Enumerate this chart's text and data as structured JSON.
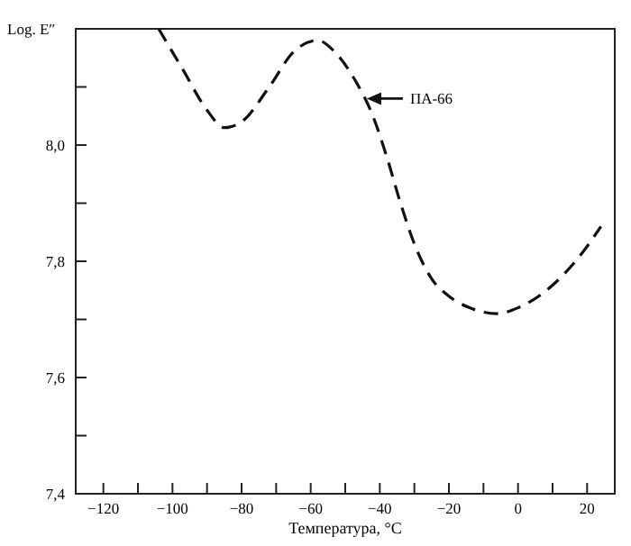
{
  "chart_data": {
    "type": "line",
    "xlabel": "Температура, °C",
    "ylabel": "Log. E″",
    "x": [
      -104,
      -97,
      -90,
      -85,
      -80,
      -72,
      -65,
      -58,
      -53,
      -47,
      -42,
      -38,
      -34,
      -30,
      -25,
      -20,
      -14,
      -6,
      0,
      6,
      12,
      18,
      24
    ],
    "series": [
      {
        "color": "#111111",
        "values": [
          8.2,
          8.13,
          8.06,
          8.03,
          8.04,
          8.1,
          8.16,
          8.18,
          8.16,
          8.11,
          8.05,
          7.98,
          7.9,
          7.83,
          7.77,
          7.74,
          7.72,
          7.71,
          7.72,
          7.74,
          7.77,
          7.81,
          7.86
        ]
      }
    ],
    "line_style": "dashed",
    "marker": "none",
    "grid": false,
    "xlim": [
      -128,
      28
    ],
    "ylim": [
      7.4,
      8.2
    ],
    "xticks": [
      -120,
      {
        "value": -110,
        "label": null
      },
      -100,
      {
        "value": -90,
        "label": null
      },
      -80,
      {
        "value": -70,
        "label": null
      },
      -60,
      {
        "value": -50,
        "label": null
      },
      -40,
      {
        "value": -30,
        "label": null
      },
      -20,
      {
        "value": -10,
        "label": null
      },
      0,
      {
        "value": 10,
        "label": null
      },
      20
    ],
    "yticks": [
      {
        "value": 7.4,
        "label": "7,4"
      },
      {
        "value": 7.5,
        "label": null
      },
      {
        "value": 7.6,
        "label": "7,6"
      },
      {
        "value": 7.7,
        "label": null
      },
      {
        "value": 7.8,
        "label": "7,8"
      },
      {
        "value": 7.9,
        "label": null
      },
      {
        "value": 8.0,
        "label": "8,0"
      },
      {
        "value": 8.1,
        "label": null
      }
    ],
    "annotations": [
      "ПА-66"
    ]
  }
}
